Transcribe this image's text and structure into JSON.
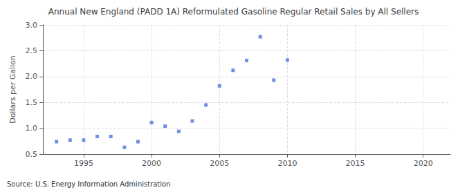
{
  "chart_data": {
    "type": "scatter",
    "title": "Annual New England (PADD 1A) Reformulated Gasoline Regular Retail Sales by All Sellers",
    "ylabel": "Dollars per Gallon",
    "annotations": [
      "Source: U.S. Energy Information Administration"
    ],
    "x": [
      1993,
      1994,
      1995,
      1996,
      1997,
      1998,
      1999,
      2000,
      2001,
      2002,
      2003,
      2004,
      2005,
      2006,
      2007,
      2008,
      2009,
      2010
    ],
    "values": [
      0.74,
      0.77,
      0.77,
      0.84,
      0.84,
      0.63,
      0.74,
      1.11,
      1.04,
      0.94,
      1.14,
      1.45,
      1.82,
      2.12,
      2.31,
      2.77,
      1.93,
      2.32
    ],
    "marker": "square",
    "xlim": [
      1992,
      2022
    ],
    "xticks": [
      1995,
      2000,
      2005,
      2010,
      2015,
      2020
    ],
    "ylim": [
      0.5,
      3.0
    ],
    "yticks": [
      0.5,
      {
        "value": 1.0,
        "label": "1.0"
      },
      1.5,
      {
        "value": 2.0,
        "label": "2.0"
      },
      2.5,
      {
        "value": 3.0,
        "label": "3.0"
      }
    ],
    "grid": true
  }
}
